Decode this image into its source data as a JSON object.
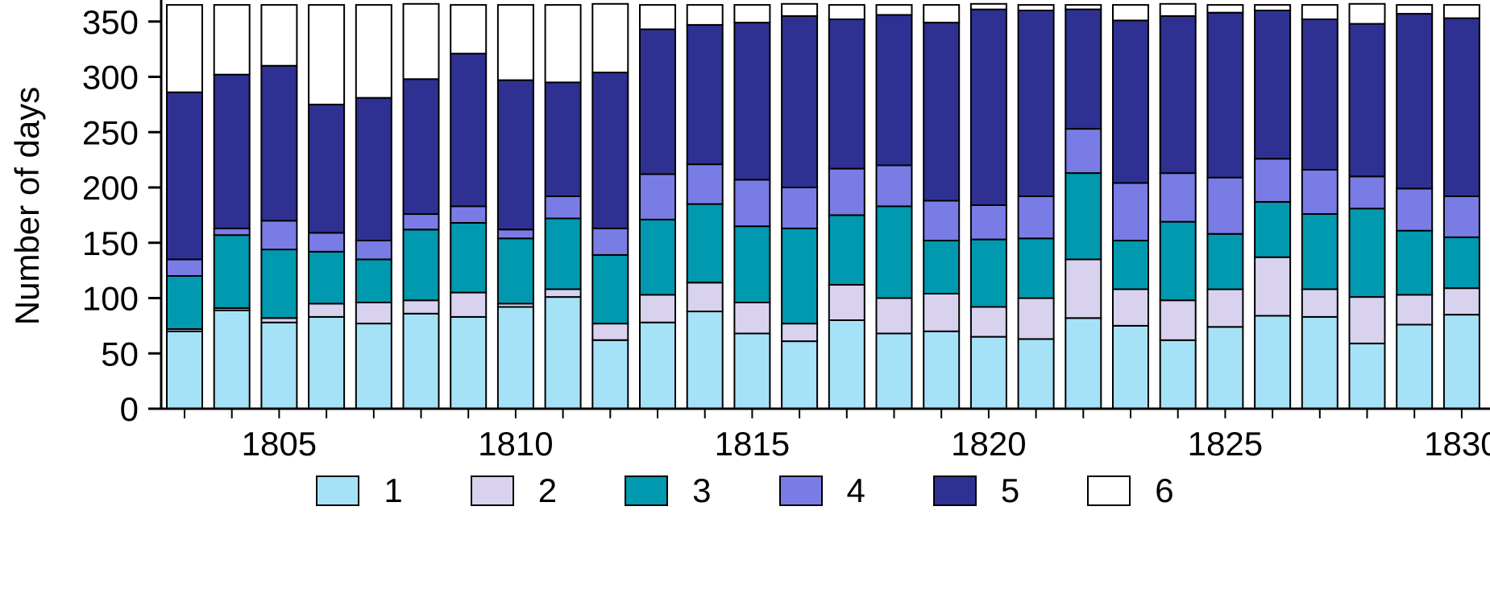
{
  "chart_data": {
    "type": "bar",
    "subtype": "stacked",
    "title": "",
    "xlabel": "",
    "ylabel": "Number of days",
    "ylim": [
      0,
      370
    ],
    "yticks": [
      0,
      50,
      100,
      150,
      200,
      250,
      300,
      350
    ],
    "xticks_labeled": [
      1805,
      1810,
      1815,
      1820,
      1825,
      1830
    ],
    "grid": false,
    "legend_position": "bottom",
    "years": [
      1803,
      1804,
      1805,
      1806,
      1807,
      1808,
      1809,
      1810,
      1811,
      1812,
      1813,
      1814,
      1815,
      1816,
      1817,
      1818,
      1819,
      1820,
      1821,
      1822,
      1823,
      1824,
      1825,
      1826,
      1827,
      1828,
      1829,
      1830
    ],
    "series": [
      {
        "name": "1",
        "color": "#a6e2f7",
        "values": [
          70,
          89,
          78,
          83,
          77,
          86,
          83,
          92,
          101,
          62,
          78,
          88,
          68,
          61,
          80,
          68,
          70,
          65,
          63,
          82,
          75,
          62,
          74,
          84,
          83,
          59,
          76,
          85
        ]
      },
      {
        "name": "2",
        "color": "#d8d2ef",
        "values": [
          2,
          2,
          4,
          12,
          19,
          12,
          22,
          3,
          7,
          15,
          25,
          26,
          28,
          16,
          32,
          32,
          34,
          27,
          37,
          53,
          33,
          36,
          34,
          53,
          25,
          42,
          27,
          24
        ]
      },
      {
        "name": "3",
        "color": "#0099b0",
        "values": [
          48,
          66,
          62,
          47,
          39,
          64,
          63,
          59,
          64,
          62,
          68,
          71,
          69,
          86,
          63,
          83,
          48,
          61,
          54,
          78,
          44,
          71,
          50,
          50,
          68,
          80,
          58,
          46
        ]
      },
      {
        "name": "4",
        "color": "#7a7ce6",
        "values": [
          15,
          6,
          26,
          17,
          17,
          14,
          15,
          8,
          20,
          24,
          41,
          36,
          42,
          37,
          42,
          37,
          36,
          31,
          38,
          40,
          52,
          44,
          51,
          39,
          40,
          29,
          38,
          37
        ]
      },
      {
        "name": "5",
        "color": "#2e3192",
        "values": [
          151,
          139,
          140,
          116,
          129,
          122,
          138,
          135,
          103,
          141,
          131,
          126,
          142,
          155,
          135,
          136,
          161,
          177,
          168,
          108,
          147,
          142,
          149,
          134,
          136,
          138,
          158,
          161
        ]
      },
      {
        "name": "6",
        "color": "#ffffff",
        "values": [
          79,
          63,
          55,
          90,
          84,
          68,
          44,
          68,
          70,
          62,
          22,
          18,
          16,
          11,
          13,
          9,
          16,
          5,
          5,
          4,
          14,
          11,
          7,
          5,
          13,
          18,
          8,
          12
        ]
      }
    ]
  }
}
